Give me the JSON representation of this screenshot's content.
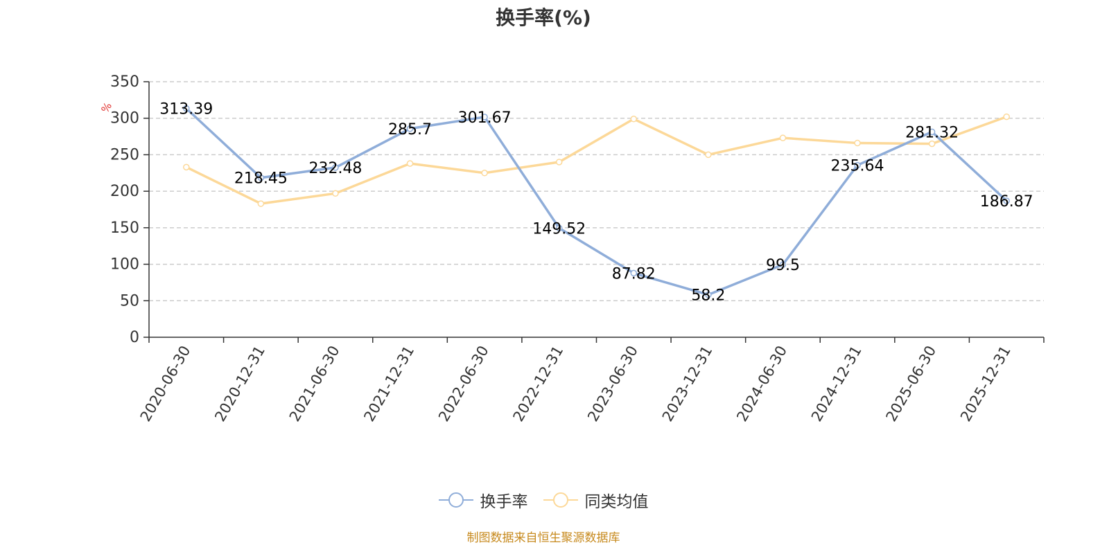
{
  "chart_data": {
    "type": "line",
    "title": "换手率(%)",
    "ylabel": "%",
    "ylim": [
      0,
      350
    ],
    "yticks": [
      0,
      50,
      100,
      150,
      200,
      250,
      300,
      350
    ],
    "grid": true,
    "legend_position": "bottom",
    "categories": [
      "2020-06-30",
      "2020-12-31",
      "2021-06-30",
      "2021-12-31",
      "2022-06-30",
      "2022-12-31",
      "2023-06-30",
      "2023-12-31",
      "2024-06-30",
      "2024-12-31",
      "2025-06-30",
      "2025-12-31"
    ],
    "series": [
      {
        "name": "换手率",
        "color": "#8fadd9",
        "values": [
          313.39,
          218.45,
          232.48,
          285.7,
          301.67,
          149.52,
          87.82,
          58.2,
          99.5,
          235.64,
          281.32,
          186.87
        ],
        "show_labels": true
      },
      {
        "name": "同类均值",
        "color": "#fcd898",
        "values": [
          233,
          183,
          197,
          238,
          225,
          240,
          299,
          250,
          273,
          266,
          265,
          302
        ],
        "show_labels": false
      }
    ],
    "source": "制图数据来自恒生聚源数据库"
  }
}
